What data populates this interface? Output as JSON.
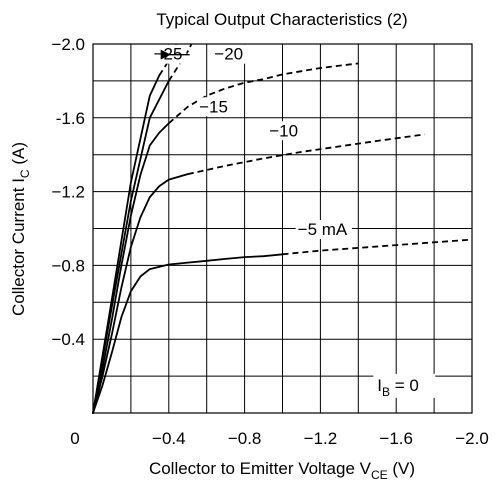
{
  "chart_data": {
    "type": "line",
    "title": "Typical Output Characteristics (2)",
    "xlabel": {
      "main": "Collector to Emitter Voltage  V",
      "sub": "CE",
      "unit": "  (V)"
    },
    "ylabel": {
      "main": "Collector Current  I",
      "sub": "C",
      "unit": "  (A)"
    },
    "xlim": [
      0,
      -2.0
    ],
    "ylim": [
      0,
      -2.0
    ],
    "xticks": [
      0,
      -0.2,
      -0.4,
      -0.6,
      -0.8,
      -1.0,
      -1.2,
      -1.4,
      -1.6,
      -1.8,
      -2.0
    ],
    "yticks": [
      0,
      -0.2,
      -0.4,
      -0.6,
      -0.8,
      -1.0,
      -1.2,
      -1.4,
      -1.6,
      -1.8,
      -2.0
    ],
    "xtick_labels": [
      {
        "value": 0,
        "label": "0"
      },
      {
        "value": -0.4,
        "label": "−0.4"
      },
      {
        "value": -0.8,
        "label": "−0.8"
      },
      {
        "value": -1.2,
        "label": "−1.2"
      },
      {
        "value": -1.6,
        "label": "−1.6"
      },
      {
        "value": -2.0,
        "label": "−2.0"
      }
    ],
    "ytick_labels": [
      {
        "value": -2.0,
        "label": "−2.0"
      },
      {
        "value": -1.6,
        "label": "-1.6"
      },
      {
        "value": -1.2,
        "label": "−1.2"
      },
      {
        "value": -0.8,
        "label": "−0.8"
      },
      {
        "value": -0.4,
        "label": "−0.4"
      }
    ],
    "grid": true,
    "series": [
      {
        "name": "−5 mA",
        "label_at": [
          -1.08,
          -0.965
        ],
        "solid": [
          [
            0,
            0
          ],
          [
            -0.05,
            -0.15
          ],
          [
            -0.1,
            -0.33
          ],
          [
            -0.15,
            -0.52
          ],
          [
            -0.2,
            -0.66
          ],
          [
            -0.25,
            -0.74
          ],
          [
            -0.3,
            -0.78
          ],
          [
            -0.4,
            -0.805
          ],
          [
            -0.5,
            -0.815
          ],
          [
            -0.6,
            -0.825
          ],
          [
            -0.7,
            -0.835
          ],
          [
            -0.8,
            -0.845
          ],
          [
            -0.9,
            -0.85
          ],
          [
            -1.0,
            -0.86
          ]
        ],
        "dashed": [
          [
            -1.0,
            -0.86
          ],
          [
            -1.2,
            -0.88
          ],
          [
            -1.4,
            -0.895
          ],
          [
            -1.6,
            -0.91
          ],
          [
            -1.8,
            -0.925
          ],
          [
            -2.0,
            -0.94
          ]
        ]
      },
      {
        "name": "−10",
        "label_at": [
          -0.93,
          -1.5
        ],
        "solid": [
          [
            0,
            0
          ],
          [
            -0.05,
            -0.2
          ],
          [
            -0.1,
            -0.43
          ],
          [
            -0.15,
            -0.68
          ],
          [
            -0.2,
            -0.9
          ],
          [
            -0.25,
            -1.06
          ],
          [
            -0.3,
            -1.17
          ],
          [
            -0.35,
            -1.23
          ],
          [
            -0.4,
            -1.265
          ],
          [
            -0.5,
            -1.295
          ]
        ],
        "dashed": [
          [
            -0.5,
            -1.295
          ],
          [
            -0.7,
            -1.34
          ],
          [
            -0.9,
            -1.38
          ],
          [
            -1.1,
            -1.415
          ],
          [
            -1.3,
            -1.445
          ],
          [
            -1.5,
            -1.475
          ],
          [
            -1.75,
            -1.51
          ]
        ]
      },
      {
        "name": "−15",
        "label_at": [
          -0.56,
          -1.63
        ],
        "solid": [
          [
            0,
            0
          ],
          [
            -0.05,
            -0.24
          ],
          [
            -0.1,
            -0.51
          ],
          [
            -0.15,
            -0.8
          ],
          [
            -0.2,
            -1.07
          ],
          [
            -0.25,
            -1.29
          ],
          [
            -0.3,
            -1.45
          ],
          [
            -0.35,
            -1.52
          ],
          [
            -0.4,
            -1.57
          ]
        ],
        "dashed": [
          [
            -0.4,
            -1.57
          ],
          [
            -0.5,
            -1.66
          ],
          [
            -0.6,
            -1.72
          ],
          [
            -0.7,
            -1.76
          ],
          [
            -0.8,
            -1.79
          ],
          [
            -0.9,
            -1.81
          ],
          [
            -1.0,
            -1.835
          ],
          [
            -1.2,
            -1.87
          ],
          [
            -1.4,
            -1.895
          ]
        ]
      },
      {
        "name": "−20",
        "label_at": [
          -0.64,
          -1.915
        ],
        "solid": [
          [
            0,
            0
          ],
          [
            -0.1,
            -0.58
          ],
          [
            -0.2,
            -1.15
          ],
          [
            -0.3,
            -1.6
          ],
          [
            -0.4,
            -1.8
          ]
        ],
        "dashed": [
          [
            -0.4,
            -1.8
          ],
          [
            -0.45,
            -1.88
          ],
          [
            -0.5,
            -1.96
          ],
          [
            -0.52,
            -2.0
          ]
        ]
      },
      {
        "name": "−25",
        "label_at": [
          -0.32,
          -1.915
        ],
        "solid": [
          [
            0,
            0
          ],
          [
            -0.1,
            -0.62
          ],
          [
            -0.2,
            -1.25
          ],
          [
            -0.3,
            -1.72
          ],
          [
            -0.35,
            -1.83
          ]
        ],
        "dashed": [
          [
            -0.35,
            -1.83
          ],
          [
            -0.4,
            -1.91
          ],
          [
            -0.44,
            -2.0
          ]
        ]
      }
    ],
    "annotations": [
      {
        "text": "I",
        "sub": "B",
        "rest": " = 0",
        "at": [
          -1.5,
          -0.12
        ]
      }
    ]
  }
}
